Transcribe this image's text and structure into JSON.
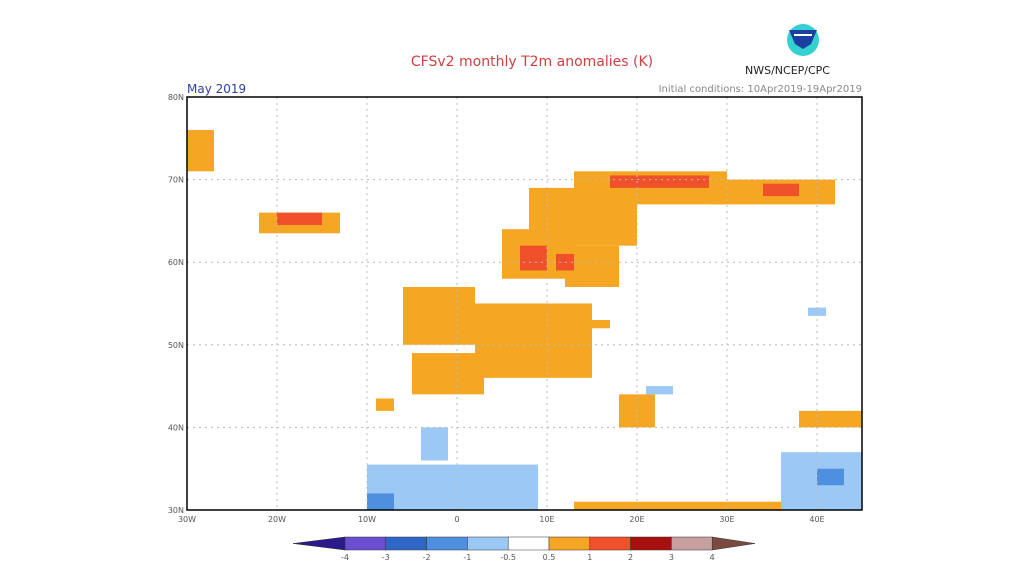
{
  "header": {
    "title": "CFSv2 monthly T2m anomalies (K)",
    "month": "May 2019",
    "initial_conditions": "Initial conditions: 10Apr2019-19Apr2019",
    "organization": "NWS/NCEP/CPC",
    "logo": "noaa-logo"
  },
  "map": {
    "lon_range": [
      -30,
      45
    ],
    "lat_range": [
      30,
      80
    ],
    "lon_ticks": [
      {
        "v": -30,
        "label": "30W"
      },
      {
        "v": -20,
        "label": "20W"
      },
      {
        "v": -10,
        "label": "10W"
      },
      {
        "v": 0,
        "label": "0"
      },
      {
        "v": 10,
        "label": "10E"
      },
      {
        "v": 20,
        "label": "20E"
      },
      {
        "v": 30,
        "label": "30E"
      },
      {
        "v": 40,
        "label": "40E"
      }
    ],
    "lat_ticks": [
      {
        "v": 30,
        "label": "30N"
      },
      {
        "v": 40,
        "label": "40N"
      },
      {
        "v": 50,
        "label": "50N"
      },
      {
        "v": 60,
        "label": "60N"
      },
      {
        "v": 70,
        "label": "70N"
      },
      {
        "v": 80,
        "label": "80N"
      }
    ],
    "anomaly_regions": [
      {
        "lon": [
          -30,
          -27
        ],
        "lat": [
          71,
          76
        ],
        "class": "0.5-1"
      },
      {
        "lon": [
          -22,
          -13
        ],
        "lat": [
          63.5,
          66
        ],
        "class": "0.5-1"
      },
      {
        "lon": [
          -20,
          -15
        ],
        "lat": [
          64.5,
          66
        ],
        "class": "1-2"
      },
      {
        "lon": [
          5,
          13
        ],
        "lat": [
          58,
          64
        ],
        "class": "0.5-1"
      },
      {
        "lon": [
          8,
          20
        ],
        "lat": [
          62,
          69
        ],
        "class": "0.5-1"
      },
      {
        "lon": [
          13,
          30
        ],
        "lat": [
          67,
          71
        ],
        "class": "0.5-1"
      },
      {
        "lon": [
          12,
          18
        ],
        "lat": [
          57,
          62
        ],
        "class": "0.5-1"
      },
      {
        "lon": [
          7,
          10
        ],
        "lat": [
          59,
          62
        ],
        "class": "1-2"
      },
      {
        "lon": [
          11,
          13
        ],
        "lat": [
          59,
          61
        ],
        "class": "1-2"
      },
      {
        "lon": [
          17,
          28
        ],
        "lat": [
          69,
          70.5
        ],
        "class": "1-2"
      },
      {
        "lon": [
          28,
          42
        ],
        "lat": [
          67,
          70
        ],
        "class": "0.5-1"
      },
      {
        "lon": [
          34,
          38
        ],
        "lat": [
          68,
          69.5
        ],
        "class": "1-2"
      },
      {
        "lon": [
          -6,
          2
        ],
        "lat": [
          50,
          57
        ],
        "class": "0.5-1"
      },
      {
        "lon": [
          -5,
          3
        ],
        "lat": [
          44,
          49
        ],
        "class": "0.5-1"
      },
      {
        "lon": [
          2,
          15
        ],
        "lat": [
          46,
          55
        ],
        "class": "0.5-1"
      },
      {
        "lon": [
          15,
          17
        ],
        "lat": [
          52,
          53
        ],
        "class": "0.5-1"
      },
      {
        "lon": [
          18,
          22
        ],
        "lat": [
          40,
          44
        ],
        "class": "0.5-1"
      },
      {
        "lon": [
          -9,
          -7
        ],
        "lat": [
          42,
          43.5
        ],
        "class": "0.5-1"
      },
      {
        "lon": [
          13,
          36
        ],
        "lat": [
          29,
          31
        ],
        "class": "0.5-1"
      },
      {
        "lon": [
          38,
          45
        ],
        "lat": [
          40,
          42
        ],
        "class": "0.5-1"
      },
      {
        "lon": [
          -4,
          -1
        ],
        "lat": [
          36,
          40
        ],
        "class": "-1--0.5"
      },
      {
        "lon": [
          -10,
          9
        ],
        "lat": [
          30,
          35.5
        ],
        "class": "-1--0.5"
      },
      {
        "lon": [
          -10,
          -7
        ],
        "lat": [
          28,
          32
        ],
        "class": "-2--1"
      },
      {
        "lon": [
          36,
          45
        ],
        "lat": [
          30,
          37
        ],
        "class": "-1--0.5"
      },
      {
        "lon": [
          40,
          43
        ],
        "lat": [
          33,
          35
        ],
        "class": "-2--1"
      },
      {
        "lon": [
          21,
          24
        ],
        "lat": [
          44,
          45
        ],
        "class": "-1--0.5"
      },
      {
        "lon": [
          39,
          41
        ],
        "lat": [
          53.5,
          54.5
        ],
        "class": "-1--0.5"
      }
    ]
  },
  "colorbar": {
    "labels": [
      "-4",
      "-3",
      "-2",
      "-1",
      "-0.5",
      "0.5",
      "1",
      "2",
      "3",
      "4"
    ],
    "colors": [
      "#2a1a8c",
      "#6a4fd0",
      "#2f67c8",
      "#4f8fe0",
      "#9cc8f5",
      "#ffffff",
      "#f5a623",
      "#f0502a",
      "#a81010",
      "#c8a0a0",
      "#7a4a40"
    ],
    "class_colors": {
      "-2--1": "#4f8fe0",
      "-1--0.5": "#9cc8f5",
      "0.5-1": "#f5a623",
      "1-2": "#f0502a"
    }
  }
}
